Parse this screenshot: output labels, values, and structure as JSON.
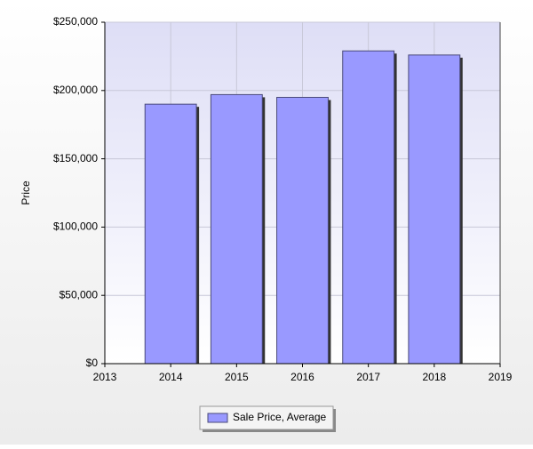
{
  "chart_data": {
    "type": "bar",
    "y_label": "Price",
    "x": [
      2014,
      2015,
      2016,
      2017,
      2018
    ],
    "series": [
      {
        "name": "Sale Price, Average",
        "color": "#9999ff",
        "values": [
          190000,
          197000,
          195000,
          229000,
          226000
        ]
      }
    ],
    "xlim": [
      2013,
      2019
    ],
    "xticks": [
      2013,
      2014,
      2015,
      2016,
      2017,
      2018,
      2019
    ],
    "ylim": [
      0,
      250000
    ],
    "yticks": [
      {
        "value": 0,
        "label": "$0"
      },
      {
        "value": 50000,
        "label": "$50,000"
      },
      {
        "value": 100000,
        "label": "$100,000"
      },
      {
        "value": 150000,
        "label": "$150,000"
      },
      {
        "value": 200000,
        "label": "$200,000"
      },
      {
        "value": 250000,
        "label": "$250,000"
      }
    ],
    "grid": true,
    "legend": "bottom"
  }
}
